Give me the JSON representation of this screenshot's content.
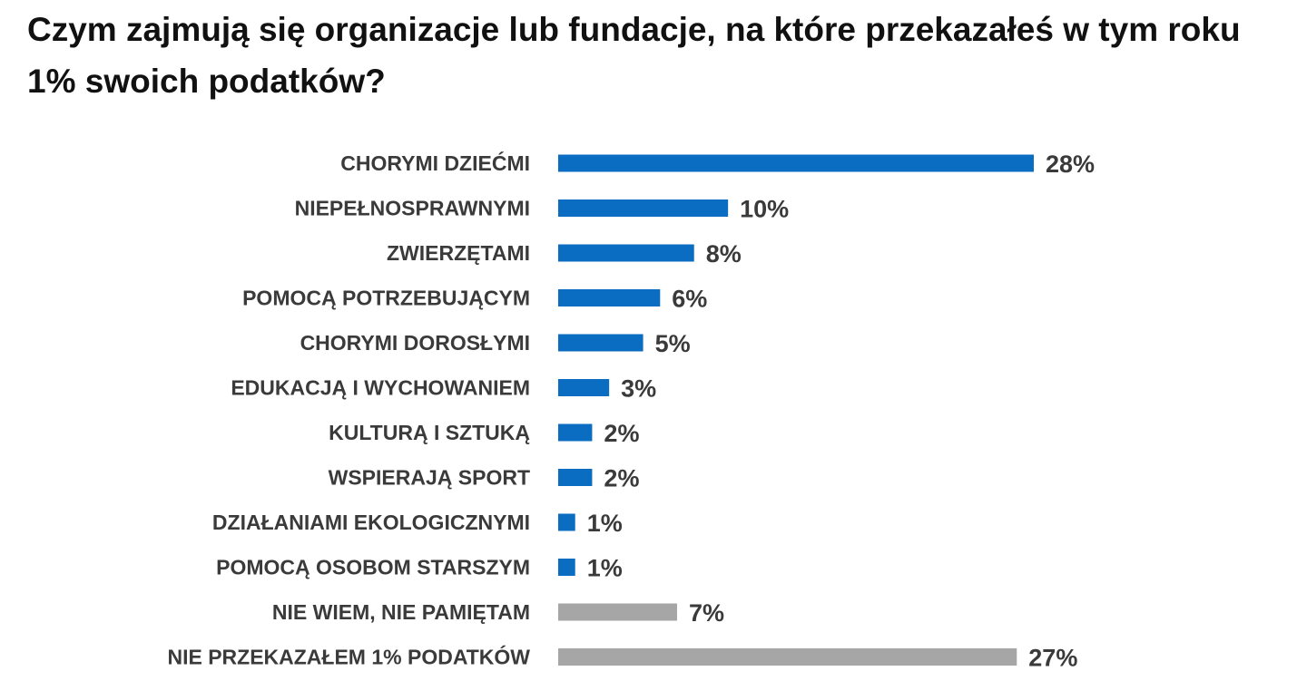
{
  "chart_data": {
    "type": "bar",
    "orientation": "horizontal",
    "title": "Czym zajmują się organizacje lub fundacje, na które przekazałeś w tym roku 1% swoich podatków?",
    "categories": [
      "CHORYMI DZIEĆMI",
      "NIEPEŁNOSPRAWNYMI",
      "ZWIERZĘTAMI",
      "POMOCĄ POTRZEBUJĄCYM",
      "CHORYMI DOROSŁYMI",
      "EDUKACJĄ I WYCHOWANIEM",
      "KULTURĄ I SZTUKĄ",
      "WSPIERAJĄ SPORT",
      "DZIAŁANIAMI EKOLOGICZNYMI",
      "POMOCĄ OSOBOM STARSZYM",
      "NIE WIEM, NIE PAMIĘTAM",
      "NIE PRZEKAZAŁEM 1% PODATKÓW"
    ],
    "values": [
      28,
      10,
      8,
      6,
      5,
      3,
      2,
      2,
      1,
      1,
      7,
      27
    ],
    "value_labels": [
      "28%",
      "10%",
      "8%",
      "6%",
      "5%",
      "3%",
      "2%",
      "2%",
      "1%",
      "1%",
      "7%",
      "27%"
    ],
    "bar_colors": [
      "#0a6dc2",
      "#0a6dc2",
      "#0a6dc2",
      "#0a6dc2",
      "#0a6dc2",
      "#0a6dc2",
      "#0a6dc2",
      "#0a6dc2",
      "#0a6dc2",
      "#0a6dc2",
      "#a6a6a6",
      "#a6a6a6"
    ],
    "xlim": [
      0,
      28
    ],
    "xlabel": "",
    "ylabel": "",
    "grid": false,
    "legend": "none"
  }
}
